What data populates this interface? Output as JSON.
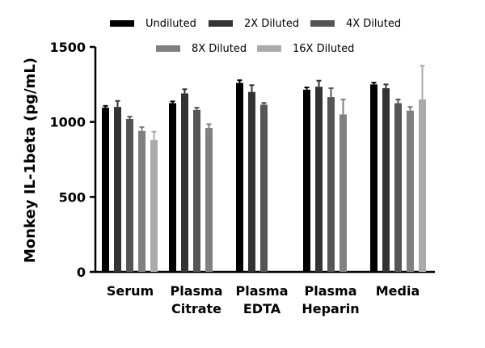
{
  "chart_data": {
    "type": "bar",
    "title": "",
    "xlabel": "",
    "ylabel": "Monkey IL-1beta (pg/mL)",
    "ylim": [
      0,
      1500
    ],
    "yticks": [
      "0",
      "500",
      "1000",
      "1500"
    ],
    "categories": [
      [
        "Serum"
      ],
      [
        "Plasma",
        "Citrate"
      ],
      [
        "Plasma",
        "EDTA"
      ],
      [
        "Plasma",
        "Heparin"
      ],
      [
        "Media"
      ]
    ],
    "series": [
      {
        "name": "Undiluted",
        "color": "#000000",
        "values": [
          1095,
          1125,
          1260,
          1215,
          1250
        ],
        "errors": [
          12,
          12,
          18,
          15,
          12
        ]
      },
      {
        "name": "2X Diluted",
        "color": "#333333",
        "values": [
          1100,
          1190,
          1200,
          1235,
          1225
        ],
        "errors": [
          40,
          28,
          45,
          40,
          25
        ]
      },
      {
        "name": "4X Diluted",
        "color": "#555555",
        "values": [
          1020,
          1080,
          1115,
          1165,
          1125
        ],
        "errors": [
          15,
          15,
          12,
          60,
          25
        ]
      },
      {
        "name": "8X Diluted",
        "color": "#808080",
        "values": [
          940,
          960,
          null,
          1050,
          1075
        ],
        "errors": [
          25,
          25,
          null,
          100,
          25
        ]
      },
      {
        "name": "16X Diluted",
        "color": "#aaaaaa",
        "values": [
          880,
          null,
          null,
          null,
          1150
        ],
        "errors": [
          55,
          null,
          null,
          null,
          225
        ]
      }
    ],
    "legend": {
      "placement": "top",
      "columns": 3
    },
    "grid": false
  }
}
